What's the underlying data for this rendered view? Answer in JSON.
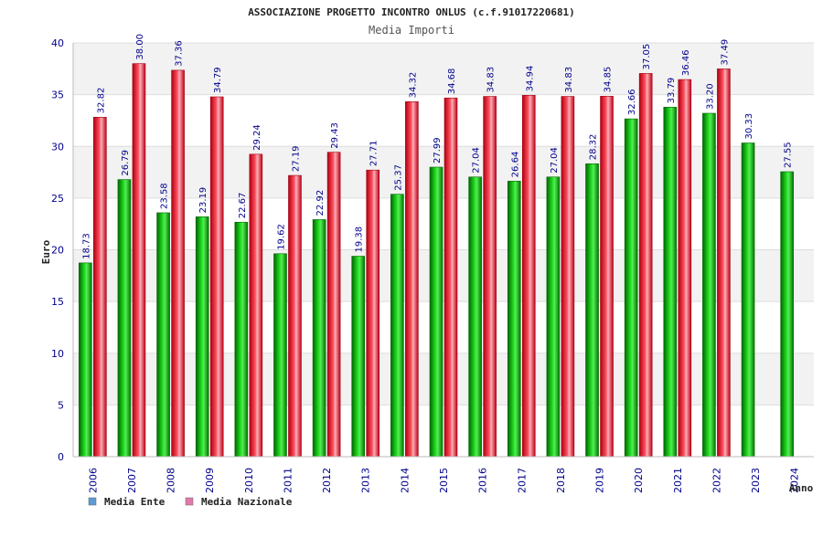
{
  "chart_data": {
    "type": "bar",
    "title": "ASSOCIAZIONE PROGETTO INCONTRO ONLUS (c.f.91017220681)",
    "subtitle": "Media Importi",
    "xlabel": "Anno",
    "ylabel": "Euro",
    "ylim": [
      0,
      40
    ],
    "yticks": [
      0,
      5,
      10,
      15,
      20,
      25,
      30,
      35,
      40
    ],
    "categories": [
      "2006",
      "2007",
      "2008",
      "2009",
      "2010",
      "2011",
      "2012",
      "2013",
      "2014",
      "2015",
      "2016",
      "2017",
      "2018",
      "2019",
      "2020",
      "2021",
      "2022",
      "2023",
      "2024"
    ],
    "series": [
      {
        "name": "Media Ente",
        "color": "#00aa00",
        "legend_color": "#5b9bd5",
        "values": [
          18.73,
          26.79,
          23.58,
          23.19,
          22.67,
          19.62,
          22.92,
          19.38,
          25.37,
          27.99,
          27.04,
          26.64,
          27.04,
          28.32,
          32.66,
          33.79,
          33.2,
          30.33,
          27.55
        ],
        "labels": [
          "18.73",
          "26.79",
          "23.58",
          "23.19",
          "22.67",
          "19.62",
          "22.92",
          "19.38",
          "25.37",
          "27.99",
          "27.04",
          "26.64",
          "27.04",
          "28.32",
          "32.66",
          "33.79",
          "33.20",
          "30.33",
          "27.55"
        ]
      },
      {
        "name": "Media Nazionale",
        "color": "#e8101c",
        "legend_color": "#e07aa8",
        "values": [
          32.82,
          38.0,
          37.36,
          34.79,
          29.24,
          27.19,
          29.43,
          27.71,
          34.32,
          34.68,
          34.83,
          34.94,
          34.83,
          34.85,
          37.05,
          36.46,
          37.49,
          null,
          null
        ],
        "labels": [
          "32.82",
          "38.00",
          "37.36",
          "34.79",
          "29.24",
          "27.19",
          "29.43",
          "27.71",
          "34.32",
          "34.68",
          "34.83",
          "34.94",
          "34.83",
          "34.85",
          "37.05",
          "36.46",
          "37.49",
          null,
          null
        ]
      }
    ],
    "grid": true,
    "legend": "bottom-left"
  }
}
